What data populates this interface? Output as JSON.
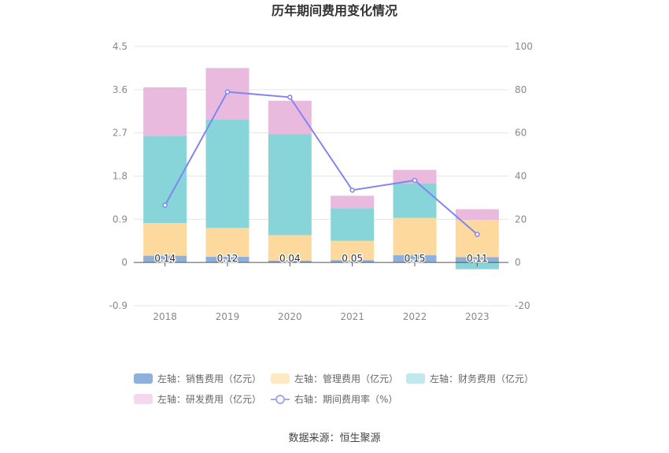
{
  "chart_data": {
    "type": "bar",
    "title": "历年期间费用变化情况",
    "categories": [
      "2018",
      "2019",
      "2020",
      "2021",
      "2022",
      "2023"
    ],
    "y_left": {
      "ylim": [
        -0.9,
        4.5
      ],
      "ticks": [
        "-0.9",
        "0",
        "0.9",
        "1.8",
        "2.7",
        "3.6",
        "4.5"
      ]
    },
    "y_right": {
      "ylim": [
        -20,
        100
      ],
      "ticks": [
        "-20",
        "0",
        "20",
        "40",
        "60",
        "80",
        "100"
      ]
    },
    "series": [
      {
        "name": "左轴：销售费用（亿元）",
        "type": "bar",
        "axis": "left",
        "color": "#8eb0dc",
        "values": [
          0.14,
          0.12,
          0.04,
          0.05,
          0.15,
          0.11
        ],
        "labels": [
          "0.14",
          "0.12",
          "0.04",
          "0.05",
          "0.15",
          "0.11"
        ]
      },
      {
        "name": "左轴：管理费用（亿元）",
        "type": "bar",
        "axis": "left",
        "color": "#fdd99e",
        "values": [
          0.68,
          0.6,
          0.53,
          0.4,
          0.78,
          0.78
        ]
      },
      {
        "name": "左轴：财务费用（亿元）",
        "type": "bar",
        "axis": "left",
        "color": "#87d5d8",
        "values": [
          1.82,
          2.26,
          2.1,
          0.68,
          0.72,
          -0.14
        ]
      },
      {
        "name": "左轴：研发费用（亿元）",
        "type": "bar",
        "axis": "left",
        "color": "#e9bade",
        "values": [
          1.01,
          1.07,
          0.7,
          0.26,
          0.28,
          0.22
        ]
      },
      {
        "name": "右轴：期间费用率（%）",
        "type": "line",
        "axis": "right",
        "color": "#8185f0",
        "values": [
          26.5,
          79,
          76.5,
          33.5,
          38,
          13
        ]
      }
    ],
    "legend": [
      {
        "label": "左轴：销售费用（亿元）",
        "color": "#8eb0dc",
        "kind": "box"
      },
      {
        "label": "左轴：管理费用（亿元）",
        "color": "#ffe8c4",
        "kind": "box"
      },
      {
        "label": "左轴：财务费用（亿元）",
        "color": "#bfe9ea",
        "kind": "box"
      },
      {
        "label": "左轴：研发费用（亿元）",
        "color": "#f3d8ee",
        "kind": "box"
      },
      {
        "label": "右轴：期间费用率（%）",
        "color": "#a3a8f2",
        "kind": "line"
      }
    ],
    "legend_position": "bottom",
    "grid": true
  },
  "source": "数据来源：恒生聚源"
}
